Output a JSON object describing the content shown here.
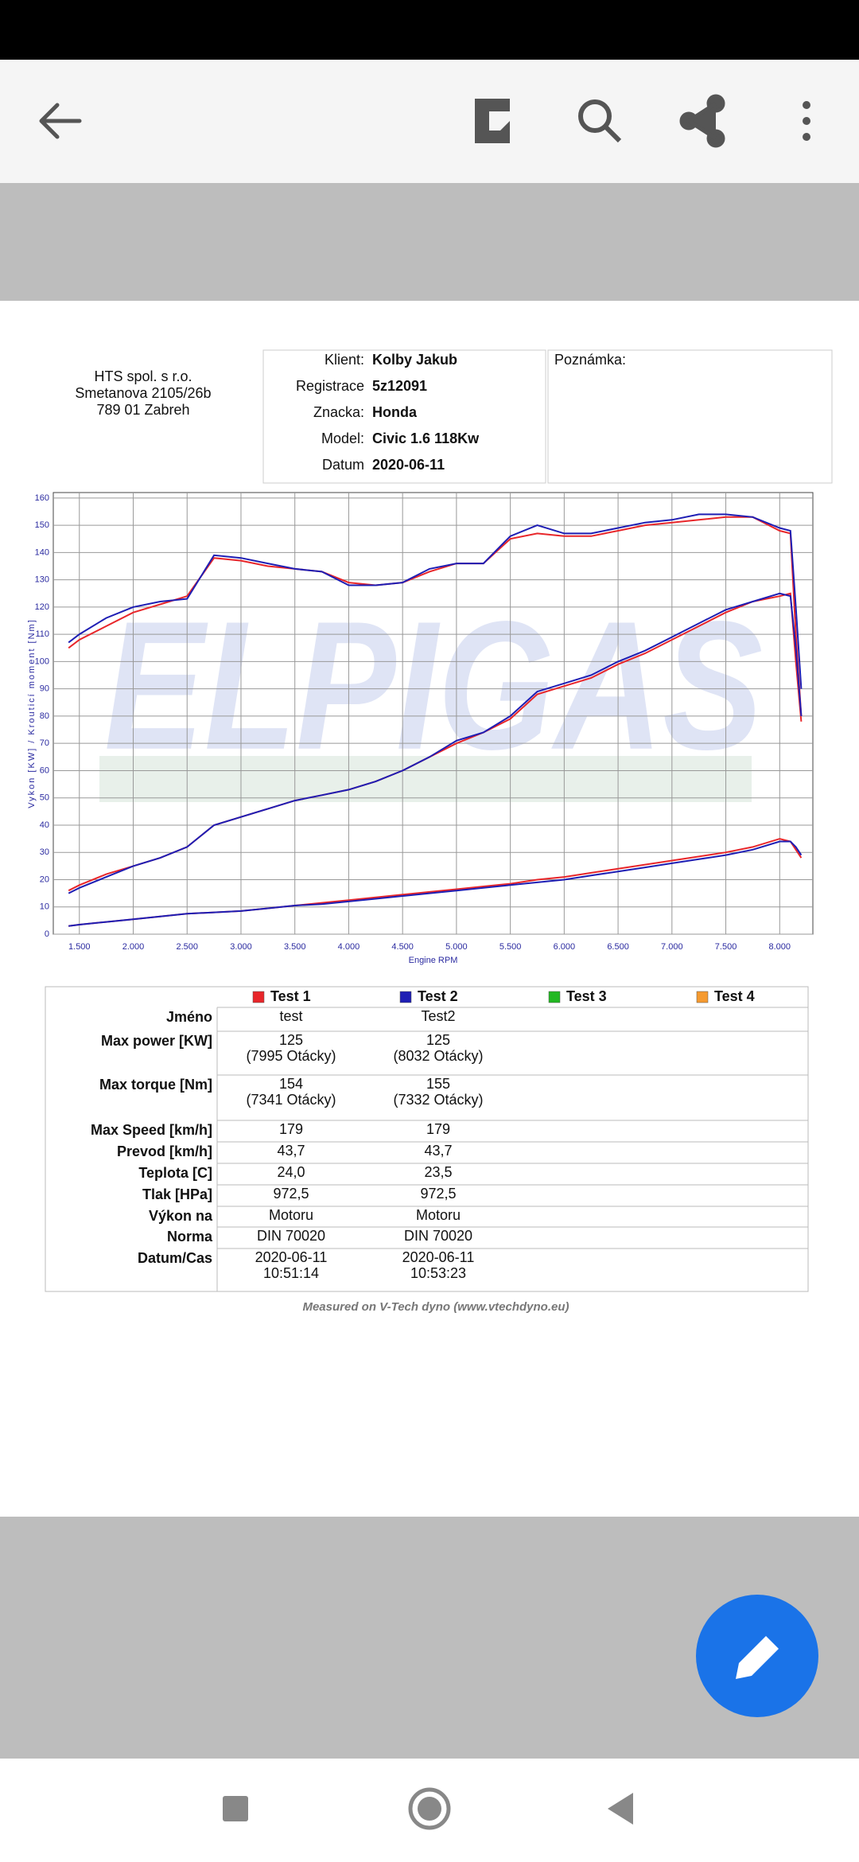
{
  "company": [
    "HTS spol. s r.o.",
    "Smetanova 2105/26b",
    "789 01 Zabreh"
  ],
  "info": [
    {
      "label": "Klient:",
      "value": "Kolby Jakub"
    },
    {
      "label": "Registrace",
      "value": "5z12091"
    },
    {
      "label": "Znacka:",
      "value": "Honda"
    },
    {
      "label": "Model:",
      "value": "Civic 1.6 118Kw"
    },
    {
      "label": "Datum",
      "value": "2020-06-11"
    }
  ],
  "note": "Poznámka:",
  "chart_data": {
    "type": "line",
    "watermark": "ELPIGAS",
    "x_label": "Engine RPM",
    "y_label": "Vykon [KW] / Krouticí moment [Nm]",
    "xlim": [
      1258,
      8308
    ],
    "ylim": [
      0,
      162
    ],
    "grid": true,
    "xticks": [
      {
        "value": 1500,
        "label": "1.500"
      },
      {
        "value": 2000,
        "label": "2.000"
      },
      {
        "value": 2500,
        "label": "2.500"
      },
      {
        "value": 3000,
        "label": "3.000"
      },
      {
        "value": 3500,
        "label": "3.500"
      },
      {
        "value": 4000,
        "label": "4.000"
      },
      {
        "value": 4500,
        "label": "4.500"
      },
      {
        "value": 5000,
        "label": "5.000"
      },
      {
        "value": 5500,
        "label": "5.500"
      },
      {
        "value": 6000,
        "label": "6.000"
      },
      {
        "value": 6500,
        "label": "6.500"
      },
      {
        "value": 7000,
        "label": "7.000"
      },
      {
        "value": 7500,
        "label": "7.500"
      },
      {
        "value": 8000,
        "label": "8.000"
      }
    ],
    "yticks": [
      0,
      10,
      20,
      30,
      40,
      50,
      60,
      70,
      80,
      90,
      100,
      110,
      120,
      130,
      140,
      150,
      160
    ],
    "x": [
      1400,
      1500,
      1750,
      2000,
      2250,
      2500,
      2750,
      3000,
      3250,
      3500,
      3750,
      4000,
      4250,
      4500,
      4750,
      5000,
      5250,
      5500,
      5750,
      6000,
      6250,
      6500,
      6750,
      7000,
      7250,
      7500,
      7750,
      8000,
      8100,
      8150,
      8200
    ],
    "series": [
      {
        "color": "#e8262a",
        "values": [
          105,
          108,
          113,
          118,
          121,
          124,
          138,
          137,
          135,
          134,
          133,
          129,
          128,
          129,
          133,
          136,
          136,
          145,
          147,
          146,
          146,
          148,
          150,
          151,
          152,
          153,
          153,
          148,
          147,
          110,
          80
        ]
      },
      {
        "color": "#1e1eb4",
        "values": [
          107,
          110,
          116,
          120,
          122,
          123,
          139,
          138,
          136,
          134,
          133,
          128,
          128,
          129,
          134,
          136,
          136,
          146,
          150,
          147,
          147,
          149,
          151,
          152,
          154,
          154,
          153,
          149,
          148,
          120,
          90
        ]
      },
      {
        "color": "#e8262a",
        "values": [
          16,
          18,
          22,
          25,
          28,
          32,
          40,
          43,
          46,
          49,
          51,
          53,
          56,
          60,
          65,
          70,
          74,
          79,
          88,
          91,
          94,
          99,
          103,
          108,
          113,
          118,
          122,
          124,
          125,
          100,
          78
        ]
      },
      {
        "color": "#1e1eb4",
        "values": [
          15,
          17,
          21,
          25,
          28,
          32,
          40,
          43,
          46,
          49,
          51,
          53,
          56,
          60,
          65,
          71,
          74,
          80,
          89,
          92,
          95,
          100,
          104,
          109,
          114,
          119,
          122,
          125,
          124,
          105,
          80
        ]
      },
      {
        "color": "#e8262a",
        "values": [
          3,
          3.5,
          4.5,
          5.5,
          6.5,
          7.5,
          8,
          8.5,
          9.5,
          10.5,
          11.5,
          12.5,
          13.5,
          14.5,
          15.5,
          16.5,
          17.5,
          18.5,
          20,
          21,
          22.5,
          24,
          25.5,
          27,
          28.5,
          30,
          32,
          35,
          34,
          31,
          28
        ]
      },
      {
        "color": "#1e1eb4",
        "values": [
          3,
          3.5,
          4.5,
          5.5,
          6.5,
          7.5,
          8,
          8.5,
          9.5,
          10.5,
          11,
          12,
          13,
          14,
          15,
          16,
          17,
          18,
          19,
          20,
          21.5,
          23,
          24.5,
          26,
          27.5,
          29,
          31,
          34,
          34,
          32,
          29
        ]
      }
    ]
  },
  "table": {
    "legend": [
      {
        "name": "Test 1",
        "color": "#e8262a"
      },
      {
        "name": "Test 2",
        "color": "#1e1eb4"
      },
      {
        "name": "Test 3",
        "color": "#22b822"
      },
      {
        "name": "Test 4",
        "color": "#f59a30"
      }
    ],
    "rows": [
      {
        "label": "Jméno",
        "cells": [
          [
            "test"
          ],
          [
            "Test2"
          ]
        ]
      },
      {
        "label": "Max power [KW]",
        "cells": [
          [
            "125",
            "(7995 Otácky)"
          ],
          [
            "125",
            "(8032 Otácky)"
          ]
        ]
      },
      {
        "label": "Max torque [Nm]",
        "cells": [
          [
            "154",
            "(7341 Otácky)"
          ],
          [
            "155",
            "(7332 Otácky)"
          ]
        ]
      },
      {
        "label": "Max Speed [km/h]",
        "cells": [
          [
            "179"
          ],
          [
            "179"
          ]
        ]
      },
      {
        "label": "Prevod [km/h]",
        "cells": [
          [
            "43,7"
          ],
          [
            "43,7"
          ]
        ]
      },
      {
        "label": "Teplota [C]",
        "cells": [
          [
            "24,0"
          ],
          [
            "23,5"
          ]
        ]
      },
      {
        "label": "Tlak [HPa]",
        "cells": [
          [
            "972,5"
          ],
          [
            "972,5"
          ]
        ]
      },
      {
        "label": "Výkon na",
        "cells": [
          [
            "Motoru"
          ],
          [
            "Motoru"
          ]
        ]
      },
      {
        "label": "Norma",
        "cells": [
          [
            "DIN 70020"
          ],
          [
            "DIN 70020"
          ]
        ]
      },
      {
        "label": "Datum/Cas",
        "cells": [
          [
            "2020-06-11",
            "10:51:14"
          ],
          [
            "2020-06-11",
            "10:53:23"
          ]
        ]
      }
    ]
  },
  "footer": "Measured on V-Tech dyno (www.vtechdyno.eu)"
}
